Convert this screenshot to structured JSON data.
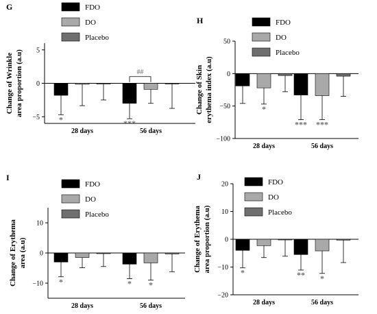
{
  "colors": {
    "FDO": "#000000",
    "DO": "#a9a9a9",
    "Placebo": "#6f6f6f",
    "axis": "#000000",
    "star": "#6f6f6f"
  },
  "chart_data": [
    {
      "id": "G",
      "panel_label": "G",
      "type": "bar",
      "ylabel": "Change of Wrinkle area proportion (a.u)",
      "ylabel_lines": [
        "Change of Wrinkle",
        "area proportion (a.u)"
      ],
      "ylim": [
        -6,
        6
      ],
      "yticks": [
        5,
        0,
        -5
      ],
      "categories": [
        "28 days",
        "56 days"
      ],
      "legend": [
        "FDO",
        "DO",
        "Placebo"
      ],
      "series": [
        {
          "name": "FDO",
          "values": [
            -1.8,
            -3.0
          ],
          "errors": [
            2.9,
            2.3
          ],
          "annotations": [
            "*",
            "***"
          ]
        },
        {
          "name": "DO",
          "values": [
            -0.15,
            -0.9
          ],
          "errors": [
            3.2,
            2.1
          ],
          "annotations": [
            "",
            ""
          ]
        },
        {
          "name": "Placebo",
          "values": [
            -0.1,
            -0.05
          ],
          "errors": [
            2.4,
            3.7
          ],
          "annotations": [
            "",
            ""
          ]
        }
      ],
      "bracket": {
        "category": "56 days",
        "from": "FDO",
        "to": "DO",
        "at_y": 1.0,
        "label": "##"
      }
    },
    {
      "id": "H",
      "panel_label": "H",
      "type": "bar",
      "ylabel": "Change of Skin erythema index (a.u)",
      "ylabel_lines": [
        "Change of Skin",
        "erythema index (a.u)"
      ],
      "ylim": [
        -100,
        50
      ],
      "yticks": [
        50,
        0,
        -50,
        -100
      ],
      "categories": [
        "28 days",
        "56 days"
      ],
      "legend": [
        "FDO",
        "DO",
        "Placebo"
      ],
      "series": [
        {
          "name": "FDO",
          "values": [
            -19,
            -33
          ],
          "errors": [
            27,
            38
          ],
          "annotations": [
            "",
            "***"
          ]
        },
        {
          "name": "DO",
          "values": [
            -22,
            -34
          ],
          "errors": [
            25,
            37
          ],
          "annotations": [
            "*",
            "***"
          ]
        },
        {
          "name": "Placebo",
          "values": [
            -3,
            -4
          ],
          "errors": [
            25,
            31
          ],
          "annotations": [
            "",
            ""
          ]
        }
      ]
    },
    {
      "id": "I",
      "panel_label": "I",
      "type": "bar",
      "ylabel": "Change of Erythema area (a.u)",
      "ylabel_lines": [
        "Change of Erythema",
        "area (a.u)"
      ],
      "ylim": [
        -15,
        15
      ],
      "yticks": [
        10,
        0,
        -10
      ],
      "categories": [
        "28 days",
        "56 days"
      ],
      "legend": [
        "FDO",
        "DO",
        "Placebo"
      ],
      "series": [
        {
          "name": "FDO",
          "values": [
            -3.0,
            -3.7
          ],
          "errors": [
            4.9,
            4.8
          ],
          "annotations": [
            "*",
            "*"
          ]
        },
        {
          "name": "DO",
          "values": [
            -1.5,
            -3.3
          ],
          "errors": [
            3.4,
            5.7
          ],
          "annotations": [
            "",
            "*"
          ]
        },
        {
          "name": "Placebo",
          "values": [
            -0.2,
            -0.3
          ],
          "errors": [
            4.3,
            5.9
          ],
          "annotations": [
            "",
            ""
          ]
        }
      ]
    },
    {
      "id": "J",
      "panel_label": "J",
      "type": "bar",
      "ylabel": "Change of Erythema area proportion (a.u)",
      "ylabel_lines": [
        "Change of Erythema",
        "area proportion (a.u)"
      ],
      "ylim": [
        -20,
        20
      ],
      "yticks": [
        20,
        10,
        0,
        -10,
        -20
      ],
      "categories": [
        "28 days",
        "56 days"
      ],
      "legend": [
        "FDO",
        "DO",
        "Placebo"
      ],
      "series": [
        {
          "name": "FDO",
          "values": [
            -4.0,
            -5.5
          ],
          "errors": [
            6.3,
            5.6
          ],
          "annotations": [
            "*",
            "**"
          ]
        },
        {
          "name": "DO",
          "values": [
            -2.3,
            -4.2
          ],
          "errors": [
            4.3,
            8.1
          ],
          "annotations": [
            "",
            "*"
          ]
        },
        {
          "name": "Placebo",
          "values": [
            -0.2,
            -0.3
          ],
          "errors": [
            5.9,
            8.1
          ],
          "annotations": [
            "",
            ""
          ]
        }
      ]
    }
  ]
}
